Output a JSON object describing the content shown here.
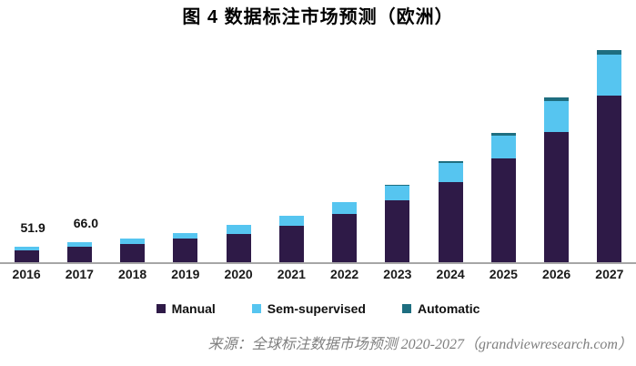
{
  "title": "图 4 数据标注市场预测（欧洲）",
  "source": "来源：全球标注数据市场预测 2020-2027（grandviewresearch.com）",
  "colors": {
    "manual": "#2e1a47",
    "sem_supervised": "#56c5f0",
    "automatic": "#1e6e80",
    "axis_line": "#a6a6a6",
    "source_text": "#7f7f7f",
    "title_text": "#000000"
  },
  "chart_data": {
    "type": "bar",
    "stacked": true,
    "grid": false,
    "y_axis_visible": false,
    "legend_position": "bottom",
    "title": "图 4 数据标注市场预测（欧洲）",
    "categories": [
      "2016",
      "2017",
      "2018",
      "2019",
      "2020",
      "2021",
      "2022",
      "2023",
      "2024",
      "2025",
      "2026",
      "2027"
    ],
    "series": [
      {
        "name": "Manual",
        "color": "#2e1a47",
        "values": [
          38.0,
          52.0,
          61,
          79,
          94,
          120,
          158,
          204,
          262,
          339,
          428,
          547
        ]
      },
      {
        "name": "Sem-supervised",
        "color": "#56c5f0",
        "values": [
          13.9,
          14.0,
          18,
          18,
          27,
          33,
          38,
          47,
          62,
          75,
          99,
          134
        ]
      },
      {
        "name": "Automatic",
        "color": "#1e6e80",
        "values": [
          0,
          0,
          0,
          0,
          0,
          0,
          0,
          3,
          6,
          10,
          13,
          14
        ]
      }
    ],
    "totals": [
      51.9,
      66.0,
      79,
      97,
      121,
      153,
      196,
      254,
      330,
      424,
      540,
      695
    ],
    "point_labels": {
      "2016": "51.9",
      "2017": "66.0"
    }
  }
}
